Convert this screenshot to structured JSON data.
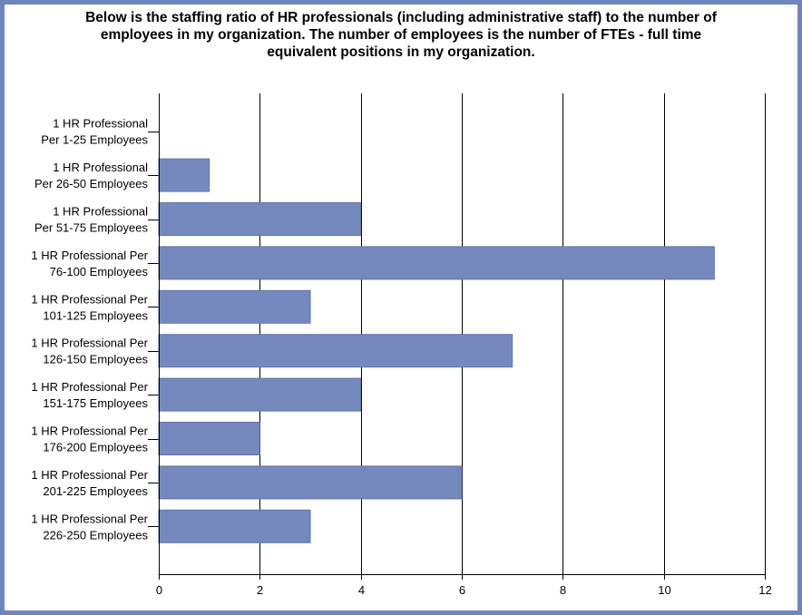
{
  "chart_data": {
    "type": "bar",
    "orientation": "horizontal",
    "title_lines": [
      "Below is the staffing ratio of HR professionals (including administrative staff) to the number of",
      "employees in my organization. The number of employees is the number of FTEs - full time",
      "equivalent positions in my organization."
    ],
    "categories": [
      [
        "1 HR Professional",
        "Per 1-25 Employees"
      ],
      [
        "1 HR Professional",
        "Per 26-50 Employees"
      ],
      [
        "1 HR Professional",
        "Per 51-75 Employees"
      ],
      [
        "1 HR Professional Per",
        "76-100 Employees"
      ],
      [
        "1 HR Professional Per",
        "101-125 Employees"
      ],
      [
        "1 HR Professional Per",
        "126-150 Employees"
      ],
      [
        "1 HR Professional Per",
        "151-175 Employees"
      ],
      [
        "1 HR Professional Per",
        "176-200 Employees"
      ],
      [
        "1 HR Professional Per",
        "201-225 Employees"
      ],
      [
        "1 HR Professional Per",
        "226-250 Employees"
      ]
    ],
    "values": [
      0,
      1,
      4,
      11,
      3,
      7,
      4,
      2,
      6,
      3
    ],
    "xlim": [
      0,
      12
    ],
    "xticks": [
      0,
      2,
      4,
      6,
      8,
      10,
      12
    ],
    "xlabel": "",
    "ylabel": "",
    "grid": true,
    "colors": {
      "bar": "#7589bf",
      "bar_edge": "#5f74a8",
      "grid": "#000000",
      "frame": "#6f86bd"
    }
  }
}
